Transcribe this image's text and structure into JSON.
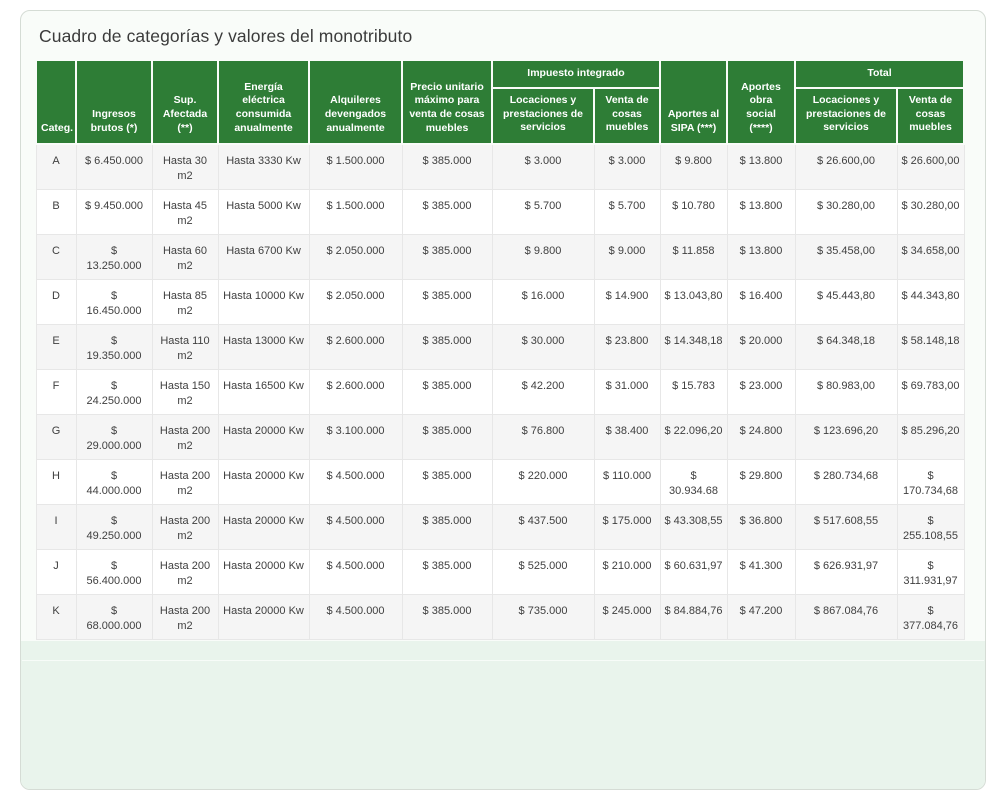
{
  "panel": {
    "title": "Cuadro de categorías y valores del monotributo"
  },
  "colors": {
    "header_green": "#2e7d36",
    "row_alt_gray": "#f5f5f5",
    "footer_light_green": "#e9f4ec",
    "card_border": "#d5dcd5"
  },
  "table": {
    "headers": {
      "categ": "Categ.",
      "ingresos": "Ingresos\nbrutos (*)",
      "sup_afectada": "Sup.\nAfectada\n(**)",
      "energia": "Energía\neléctrica\nconsumida\nanualmente",
      "alquileres": "Alquileres\ndevengados\nanualmente",
      "precio_unitario": "Precio unitario\nmáximo para\nventa de cosas\nmuebles",
      "impuesto_integrado": "Impuesto integrado",
      "impuesto_servicios": "Locaciones y\nprestaciones de\nservicios",
      "impuesto_muebles": "Venta de\ncosas\nmuebles",
      "aportes_sipa": "Aportes al\nSIPA (***)",
      "aportes_obra_social": "Aportes\nobra\nsocial\n(****)",
      "total": "Total",
      "total_servicios": "Locaciones y\nprestaciones de\nservicios",
      "total_muebles": "Venta de\ncosas\nmuebles"
    },
    "rows": [
      [
        "A",
        "$ 6.450.000",
        "Hasta 30\nm2",
        "Hasta 3330 Kw",
        "$ 1.500.000",
        "$ 385.000",
        "$ 3.000",
        "$ 3.000",
        "$ 9.800",
        "$ 13.800",
        "$ 26.600,00",
        "$ 26.600,00"
      ],
      [
        "B",
        "$ 9.450.000",
        "Hasta 45\nm2",
        "Hasta 5000 Kw",
        "$ 1.500.000",
        "$ 385.000",
        "$ 5.700",
        "$ 5.700",
        "$ 10.780",
        "$ 13.800",
        "$ 30.280,00",
        "$ 30.280,00"
      ],
      [
        "C",
        "$\n13.250.000",
        "Hasta 60\nm2",
        "Hasta 6700 Kw",
        "$ 2.050.000",
        "$ 385.000",
        "$ 9.800",
        "$ 9.000",
        "$ 11.858",
        "$ 13.800",
        "$ 35.458,00",
        "$ 34.658,00"
      ],
      [
        "D",
        "$\n16.450.000",
        "Hasta 85\nm2",
        "Hasta 10000 Kw",
        "$ 2.050.000",
        "$ 385.000",
        "$ 16.000",
        "$ 14.900",
        "$ 13.043,80",
        "$ 16.400",
        "$ 45.443,80",
        "$ 44.343,80"
      ],
      [
        "E",
        "$\n19.350.000",
        "Hasta 110\nm2",
        "Hasta 13000 Kw",
        "$ 2.600.000",
        "$ 385.000",
        "$ 30.000",
        "$ 23.800",
        "$ 14.348,18",
        "$ 20.000",
        "$ 64.348,18",
        "$ 58.148,18"
      ],
      [
        "F",
        "$\n24.250.000",
        "Hasta 150\nm2",
        "Hasta 16500 Kw",
        "$ 2.600.000",
        "$ 385.000",
        "$ 42.200",
        "$ 31.000",
        "$ 15.783",
        "$ 23.000",
        "$ 80.983,00",
        "$ 69.783,00"
      ],
      [
        "G",
        "$\n29.000.000",
        "Hasta 200\nm2",
        "Hasta 20000 Kw",
        "$ 3.100.000",
        "$ 385.000",
        "$ 76.800",
        "$ 38.400",
        "$ 22.096,20",
        "$ 24.800",
        "$ 123.696,20",
        "$ 85.296,20"
      ],
      [
        "H",
        "$\n44.000.000",
        "Hasta 200\nm2",
        "Hasta 20000 Kw",
        "$ 4.500.000",
        "$ 385.000",
        "$ 220.000",
        "$ 110.000",
        "$\n30.934.68",
        "$ 29.800",
        "$ 280.734,68",
        "$ 170.734,68"
      ],
      [
        "I",
        "$\n49.250.000",
        "Hasta 200\nm2",
        "Hasta 20000 Kw",
        "$ 4.500.000",
        "$ 385.000",
        "$ 437.500",
        "$ 175.000",
        "$ 43.308,55",
        "$ 36.800",
        "$ 517.608,55",
        "$ 255.108,55"
      ],
      [
        "J",
        "$\n56.400.000",
        "Hasta 200\nm2",
        "Hasta 20000 Kw",
        "$ 4.500.000",
        "$ 385.000",
        "$ 525.000",
        "$ 210.000",
        "$ 60.631,97",
        "$ 41.300",
        "$ 626.931,97",
        "$ 311.931,97"
      ],
      [
        "K",
        "$\n68.000.000",
        "Hasta 200\nm2",
        "Hasta 20000 Kw",
        "$ 4.500.000",
        "$ 385.000",
        "$ 735.000",
        "$ 245.000",
        "$ 84.884,76",
        "$ 47.200",
        "$ 867.084,76",
        "$ 377.084,76"
      ]
    ]
  }
}
